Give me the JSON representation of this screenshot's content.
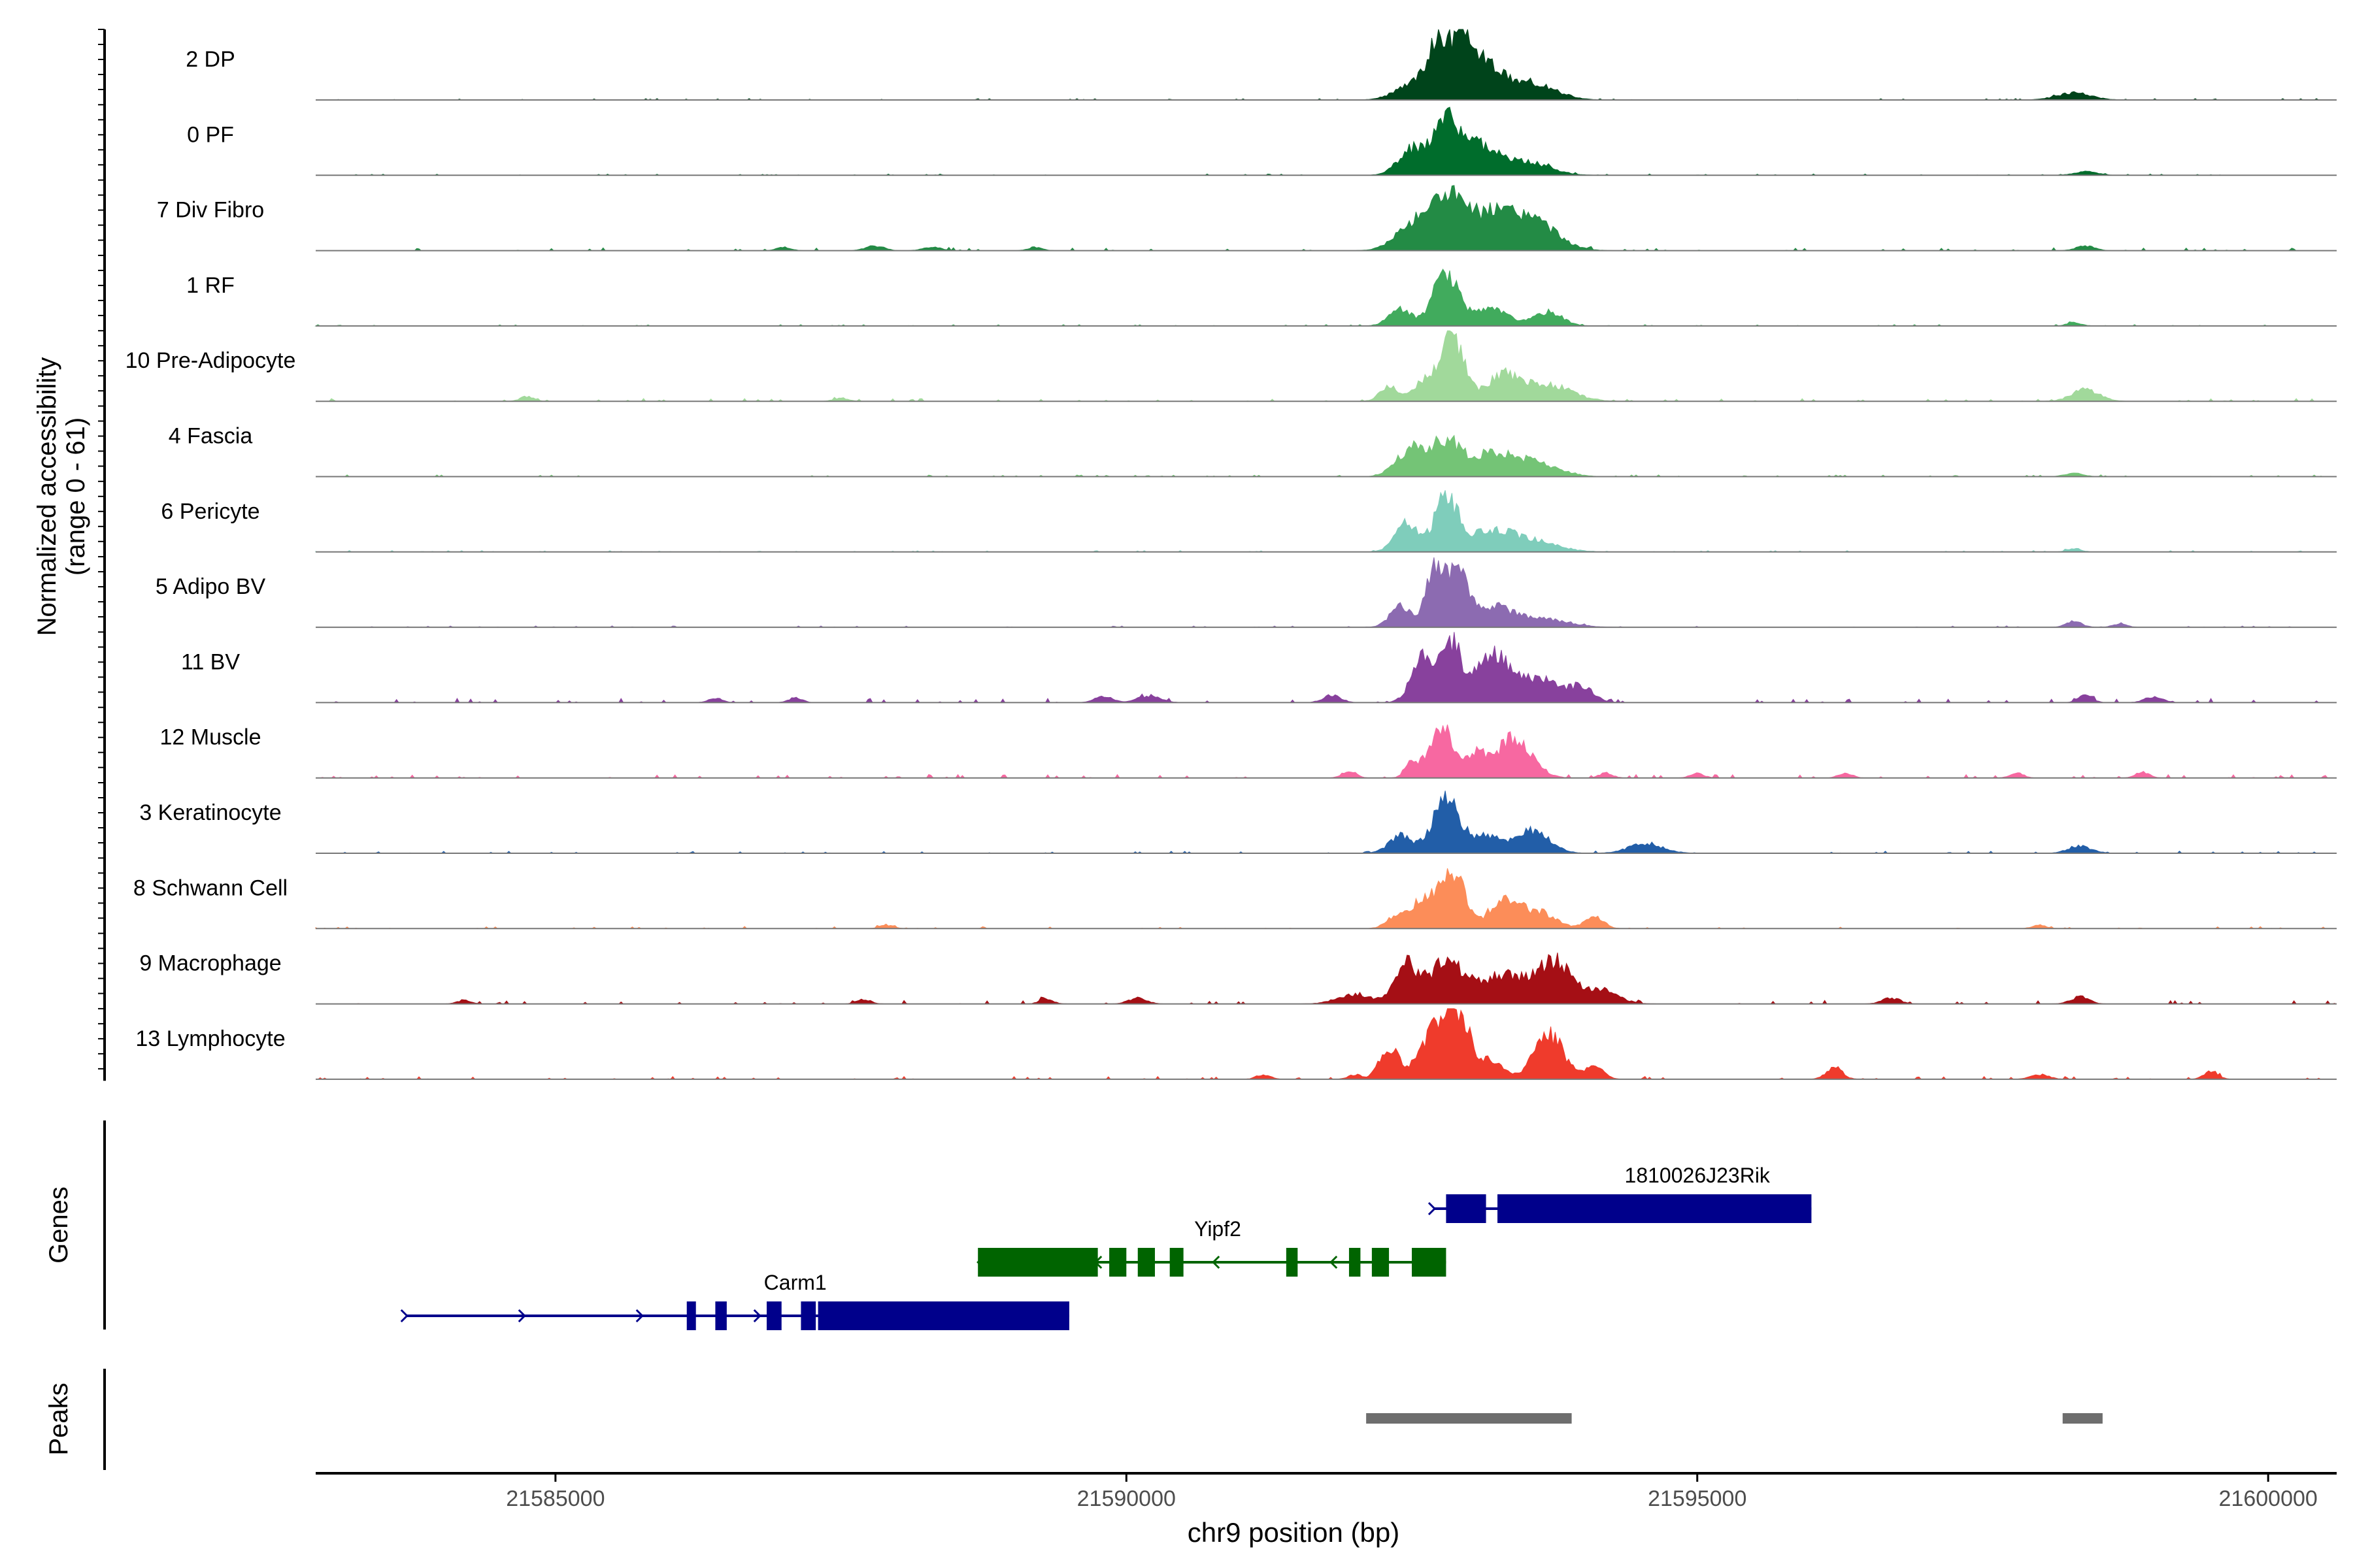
{
  "chart_data": {
    "type": "area",
    "title": "",
    "ylabel": "Normalized accessibility\n(range 0 - 61)",
    "xlabel": "chr9 position (bp)",
    "xlim": [
      21582900,
      21600600
    ],
    "ylim": [
      0,
      61
    ],
    "x_ticks": [
      21585000,
      21590000,
      21595000,
      21600000
    ],
    "x_tick_labels": [
      "21585000",
      "21590000",
      "21595000",
      "21600000"
    ],
    "tracks": [
      {
        "name": "2 DP",
        "color": "#00441b",
        "peaks": [
          [
            21592500,
            12,
            150
          ],
          [
            21592750,
            48,
            110
          ],
          [
            21592950,
            38,
            90
          ],
          [
            21593150,
            30,
            140
          ],
          [
            21593550,
            15,
            200
          ],
          [
            21598300,
            6,
            150
          ]
        ],
        "noise": 0.4,
        "seed": 11
      },
      {
        "name": "0 PF",
        "color": "#006d2c",
        "peaks": [
          [
            21592500,
            22,
            120
          ],
          [
            21592800,
            45,
            110
          ],
          [
            21593100,
            25,
            150
          ],
          [
            21593500,
            12,
            200
          ],
          [
            21598400,
            3,
            100
          ]
        ],
        "noise": 0.4,
        "seed": 12
      },
      {
        "name": "7 Div Fibro",
        "color": "#238b45",
        "peaks": [
          [
            21592500,
            20,
            150
          ],
          [
            21592800,
            38,
            150
          ],
          [
            21593200,
            30,
            250
          ],
          [
            21593600,
            18,
            200
          ],
          [
            21587000,
            3,
            60
          ],
          [
            21587800,
            4,
            80
          ],
          [
            21588300,
            3,
            80
          ],
          [
            21589200,
            3,
            60
          ],
          [
            21598400,
            4,
            80
          ]
        ],
        "noise": 0.8,
        "seed": 13
      },
      {
        "name": "1 RF",
        "color": "#41ab5d",
        "peaks": [
          [
            21592400,
            14,
            100
          ],
          [
            21592800,
            47,
            110
          ],
          [
            21593200,
            14,
            150
          ],
          [
            21593700,
            12,
            120
          ],
          [
            21598300,
            3,
            60
          ]
        ],
        "noise": 0.4,
        "seed": 14
      },
      {
        "name": "10 Pre-Adipocyte",
        "color": "#a1d99b",
        "peaks": [
          [
            21592300,
            12,
            80
          ],
          [
            21592600,
            16,
            90
          ],
          [
            21592850,
            57,
            100
          ],
          [
            21593300,
            22,
            150
          ],
          [
            21593700,
            14,
            200
          ],
          [
            21598400,
            10,
            120
          ],
          [
            21584750,
            4,
            60
          ],
          [
            21587500,
            3,
            60
          ]
        ],
        "noise": 0.8,
        "seed": 15
      },
      {
        "name": "4 Fascia",
        "color": "#74c476",
        "peaks": [
          [
            21592500,
            24,
            130
          ],
          [
            21592800,
            28,
            120
          ],
          [
            21593200,
            20,
            200
          ],
          [
            21593600,
            10,
            200
          ],
          [
            21598300,
            3,
            80
          ]
        ],
        "noise": 0.5,
        "seed": 16
      },
      {
        "name": "6 Pericyte",
        "color": "#7fcdbb",
        "peaks": [
          [
            21592450,
            24,
            100
          ],
          [
            21592800,
            47,
            100
          ],
          [
            21593200,
            18,
            200
          ],
          [
            21593600,
            8,
            200
          ],
          [
            21598300,
            3,
            60
          ]
        ],
        "noise": 0.4,
        "seed": 17
      },
      {
        "name": "5 Adipo BV",
        "color": "#8c6bb1",
        "peaks": [
          [
            21592400,
            18,
            90
          ],
          [
            21592700,
            48,
            80
          ],
          [
            21592900,
            50,
            80
          ],
          [
            21593200,
            18,
            200
          ],
          [
            21593700,
            6,
            200
          ],
          [
            21598300,
            5,
            70
          ],
          [
            21598700,
            3,
            60
          ]
        ],
        "noise": 0.4,
        "seed": 18
      },
      {
        "name": "11 BV",
        "color": "#88419d",
        "peaks": [
          [
            21592600,
            40,
            100
          ],
          [
            21592850,
            50,
            80
          ],
          [
            21593200,
            40,
            150
          ],
          [
            21593600,
            20,
            200
          ],
          [
            21594000,
            12,
            100
          ],
          [
            21586400,
            4,
            60
          ],
          [
            21587100,
            4,
            60
          ],
          [
            21589800,
            5,
            80
          ],
          [
            21590200,
            6,
            100
          ],
          [
            21591800,
            6,
            80
          ],
          [
            21598400,
            7,
            60
          ],
          [
            21599000,
            5,
            80
          ]
        ],
        "noise": 1.2,
        "seed": 19
      },
      {
        "name": "12 Muscle",
        "color": "#f768a1",
        "peaks": [
          [
            21592500,
            12,
            60
          ],
          [
            21592750,
            45,
            100
          ],
          [
            21593050,
            20,
            100
          ],
          [
            21593400,
            35,
            150
          ],
          [
            21591950,
            6,
            60
          ],
          [
            21594200,
            4,
            60
          ],
          [
            21595000,
            4,
            60
          ],
          [
            21596300,
            4,
            60
          ],
          [
            21597800,
            4,
            60
          ],
          [
            21598900,
            5,
            60
          ]
        ],
        "noise": 1.0,
        "seed": 20
      },
      {
        "name": "3 Keratinocyte",
        "color": "#225ea8",
        "peaks": [
          [
            21592400,
            15,
            100
          ],
          [
            21592800,
            45,
            120
          ],
          [
            21593150,
            14,
            120
          ],
          [
            21593550,
            20,
            150
          ],
          [
            21594550,
            8,
            150
          ],
          [
            21598350,
            6,
            100
          ]
        ],
        "noise": 0.6,
        "seed": 21
      },
      {
        "name": "8 Schwann Cell",
        "color": "#fc8d59",
        "peaks": [
          [
            21592350,
            8,
            80
          ],
          [
            21592650,
            28,
            150
          ],
          [
            21592880,
            42,
            90
          ],
          [
            21593300,
            22,
            130
          ],
          [
            21593600,
            14,
            150
          ],
          [
            21594100,
            10,
            80
          ],
          [
            21587900,
            3,
            60
          ],
          [
            21598000,
            3,
            60
          ]
        ],
        "noise": 0.6,
        "seed": 22
      },
      {
        "name": "9 Macrophage",
        "color": "#a50f15",
        "peaks": [
          [
            21592000,
            8,
            150
          ],
          [
            21592450,
            32,
            100
          ],
          [
            21592800,
            35,
            150
          ],
          [
            21593300,
            25,
            200
          ],
          [
            21593750,
            35,
            150
          ],
          [
            21594150,
            12,
            150
          ],
          [
            21584200,
            3,
            60
          ],
          [
            21587700,
            4,
            60
          ],
          [
            21589300,
            4,
            60
          ],
          [
            21590100,
            5,
            80
          ],
          [
            21596700,
            5,
            80
          ],
          [
            21598350,
            6,
            80
          ]
        ],
        "noise": 1.0,
        "seed": 23
      },
      {
        "name": "13 Lymphocyte",
        "color": "#ef3b2c",
        "peaks": [
          [
            21592300,
            28,
            80
          ],
          [
            21592650,
            30,
            120
          ],
          [
            21592880,
            60,
            120
          ],
          [
            21593200,
            15,
            100
          ],
          [
            21593700,
            38,
            130
          ],
          [
            21594100,
            10,
            80
          ],
          [
            21591200,
            4,
            60
          ],
          [
            21592000,
            4,
            60
          ],
          [
            21596200,
            10,
            70
          ],
          [
            21598000,
            4,
            80
          ],
          [
            21599500,
            7,
            60
          ]
        ],
        "noise": 0.8,
        "seed": 24
      }
    ],
    "genes": [
      {
        "name": "1810026J23Rik",
        "strand": "+",
        "color": "#00008b",
        "start": 21592700,
        "end": 21596000,
        "exons": [
          [
            21592800,
            21593150
          ],
          [
            21593250,
            21596000
          ]
        ],
        "row": 0
      },
      {
        "name": "Yipf2",
        "strand": "-",
        "color": "#006400",
        "start": 21588700,
        "end": 21592800,
        "exons": [
          [
            21588700,
            21589750
          ],
          [
            21589850,
            21590000
          ],
          [
            21590100,
            21590250
          ],
          [
            21590380,
            21590500
          ],
          [
            21591400,
            21591500
          ],
          [
            21591950,
            21592050
          ],
          [
            21592150,
            21592300
          ],
          [
            21592500,
            21592800
          ]
        ],
        "row": 1
      },
      {
        "name": "Carm1",
        "strand": "+",
        "color": "#00008b",
        "start": 21583700,
        "end": 21589500,
        "exons": [
          [
            21586150,
            21586230
          ],
          [
            21586400,
            21586500
          ],
          [
            21586850,
            21586980
          ],
          [
            21587150,
            21587280
          ],
          [
            21587300,
            21589500
          ]
        ],
        "row": 2
      }
    ],
    "peaks_regions": [
      [
        21592100,
        21593900
      ],
      [
        21598200,
        21598550
      ]
    ],
    "panel_labels": {
      "genes": "Genes",
      "peaks": "Peaks"
    }
  }
}
